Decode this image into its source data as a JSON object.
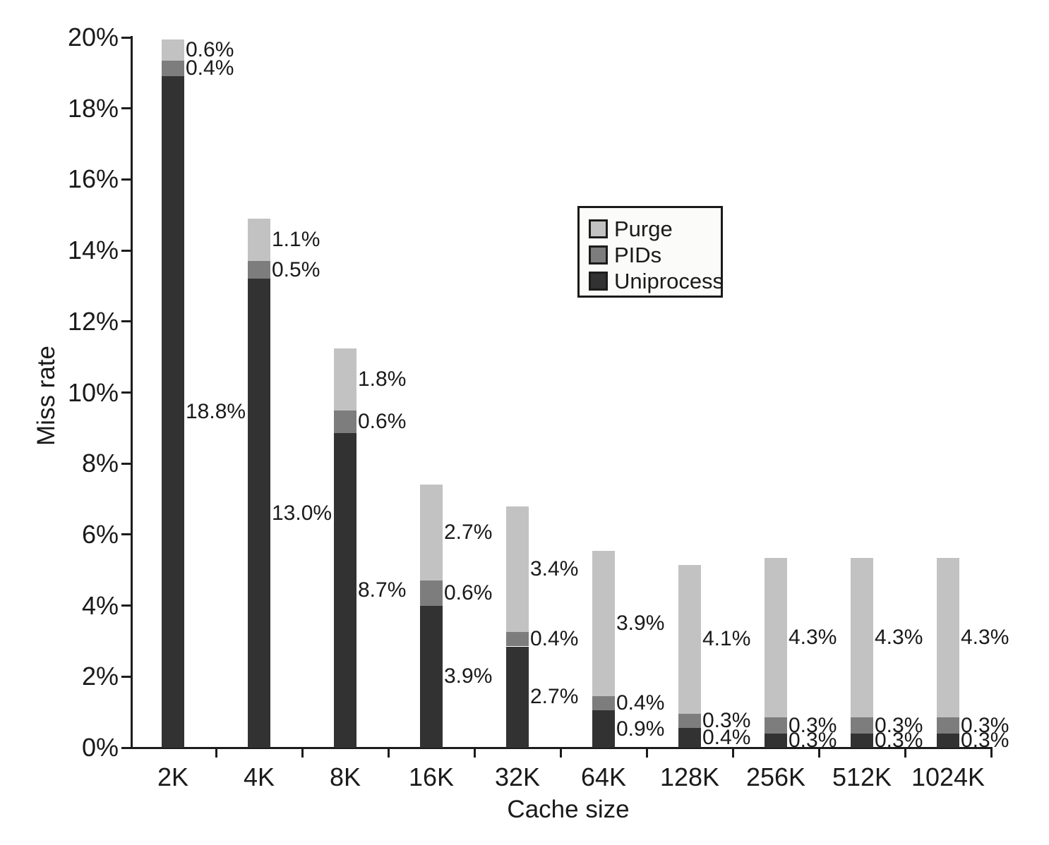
{
  "figure": {
    "background": "#ffffff",
    "text_color": "#1a1a1a"
  },
  "chart_data": {
    "type": "bar",
    "stacked": true,
    "title": "",
    "xlabel": "Cache size",
    "ylabel": "Miss rate",
    "categories": [
      "2K",
      "4K",
      "8K",
      "16K",
      "32K",
      "64K",
      "128K",
      "256K",
      "512K",
      "1024K"
    ],
    "series": [
      {
        "name": "Uniprocess",
        "color": "#323232",
        "values": [
          18.8,
          13.0,
          8.7,
          3.9,
          2.7,
          0.9,
          0.4,
          0.3,
          0.3,
          0.3
        ],
        "data_labels": [
          "18.8%",
          "13.0%",
          "8.7%",
          "3.9%",
          "2.7%",
          "0.9%",
          "0.4%",
          "0.3%",
          "0.3%",
          "0.3%"
        ]
      },
      {
        "name": "PIDs",
        "color": "#7d7d7d",
        "values": [
          0.4,
          0.5,
          0.6,
          0.6,
          0.4,
          0.4,
          0.3,
          0.3,
          0.3,
          0.3
        ],
        "data_labels": [
          "0.4%",
          "0.5%",
          "0.6%",
          "0.6%",
          "0.4%",
          "0.4%",
          "0.3%",
          "0.3%",
          "0.3%",
          "0.3%"
        ]
      },
      {
        "name": "Purge",
        "color": "#c2c2c2",
        "values": [
          0.6,
          1.1,
          1.8,
          2.7,
          3.4,
          3.9,
          4.1,
          4.3,
          4.3,
          4.3
        ],
        "data_labels": [
          "0.6%",
          "1.1%",
          "1.8%",
          "2.7%",
          "3.4%",
          "3.9%",
          "4.1%",
          "4.3%",
          "4.3%",
          "4.3%"
        ]
      }
    ],
    "drawn_segment_heights_pct": {
      "Uniprocess": [
        18.9,
        13.2,
        8.85,
        4.0,
        2.85,
        1.05,
        0.55,
        0.4,
        0.4,
        0.4
      ],
      "PIDs": [
        0.45,
        0.5,
        0.65,
        0.7,
        0.4,
        0.4,
        0.4,
        0.45,
        0.45,
        0.45
      ],
      "Purge": [
        0.6,
        1.2,
        1.75,
        2.7,
        3.55,
        4.1,
        4.2,
        4.5,
        4.5,
        4.5
      ]
    },
    "ylim": [
      0,
      20
    ],
    "ytick_step": 2,
    "ytick_labels": [
      "0%",
      "2%",
      "4%",
      "6%",
      "8%",
      "10%",
      "12%",
      "14%",
      "16%",
      "18%",
      "20%"
    ],
    "grid": false,
    "legend": {
      "position": "inside-top-right",
      "entries": [
        "Purge",
        "PIDs",
        "Uniprocess"
      ]
    }
  }
}
